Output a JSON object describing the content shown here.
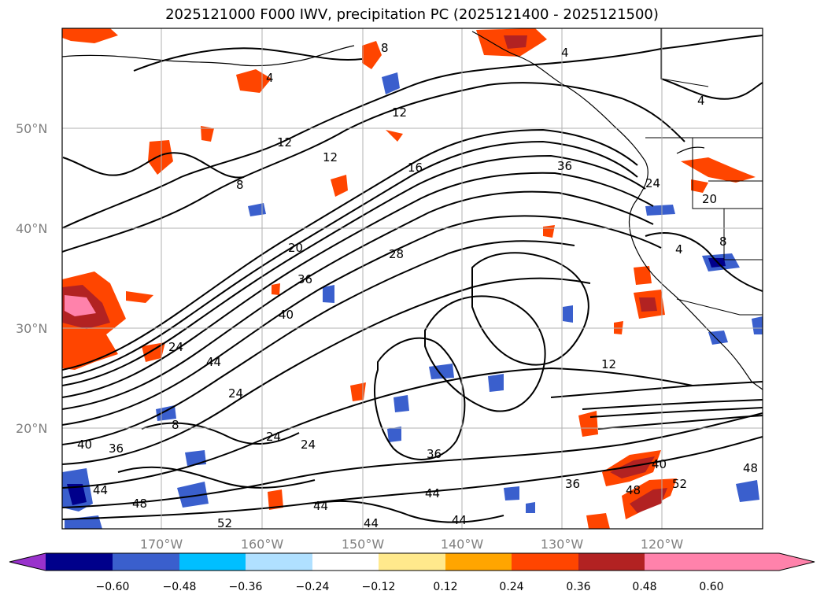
{
  "title": "2025121000 F000 IWV, precipitation PC (2025121400 - 2025121500)",
  "map": {
    "lat_labels": [
      "50°N",
      "40°N",
      "30°N",
      "20°N"
    ],
    "lon_labels": [
      "170°W",
      "160°W",
      "150°W",
      "140°W",
      "130°W",
      "120°W"
    ]
  },
  "iwv_contour_labels": [
    "8",
    "4",
    "4",
    "12",
    "12",
    "12",
    "16",
    "36",
    "24",
    "20",
    "20",
    "28",
    "36",
    "40",
    "24",
    "44",
    "24",
    "24",
    "8",
    "40",
    "36",
    "24",
    "44",
    "48",
    "36",
    "36",
    "44",
    "40",
    "48",
    "52",
    "52",
    "44",
    "44",
    "48",
    "44",
    "12",
    "4",
    "8",
    "4",
    "8"
  ],
  "colorbar": {
    "ticks": [
      "−0.60",
      "−0.48",
      "−0.36",
      "−0.24",
      "−0.12",
      "0.12",
      "0.24",
      "0.36",
      "0.48",
      "0.60"
    ],
    "colors": [
      "#9932cc",
      "#00008b",
      "#3a5fcd",
      "#00bfff",
      "#b0e0ff",
      "#ffffff",
      "#ffe98c",
      "#ffa500",
      "#ff4500",
      "#b22222",
      "#ff82ab",
      "#ff82ab"
    ],
    "under_color": "#9932cc",
    "over_color": "#ff82ab"
  }
}
